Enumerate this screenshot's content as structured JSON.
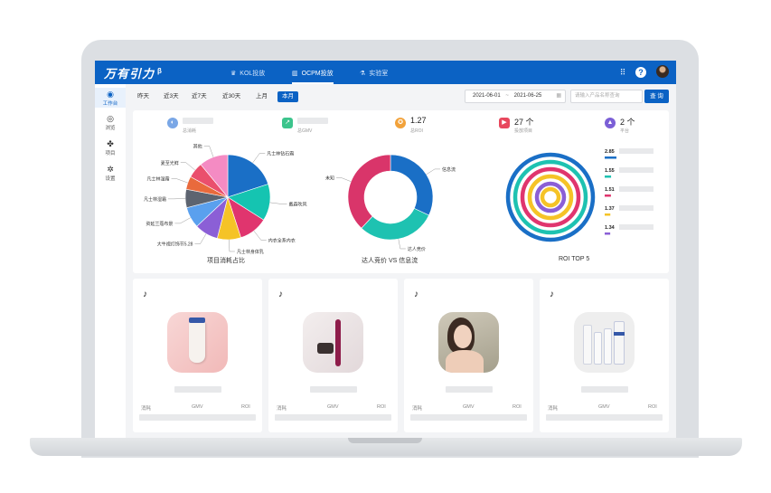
{
  "header": {
    "logo": "万有引力",
    "logo_sup": "β",
    "tabs": [
      {
        "label": "KOL投放",
        "active": false,
        "icon": "crown-icon"
      },
      {
        "label": "OCPM投放",
        "active": true,
        "icon": "bar-chart-icon"
      },
      {
        "label": "实验室",
        "active": false,
        "icon": "flask-icon"
      }
    ]
  },
  "sidebar": {
    "items": [
      {
        "label": "工作台",
        "icon": "dashboard-icon",
        "active": true
      },
      {
        "label": "浏览",
        "icon": "eye-icon",
        "active": false
      },
      {
        "label": "项目",
        "icon": "grid-icon",
        "active": false
      },
      {
        "label": "设置",
        "icon": "gear-icon",
        "active": false
      }
    ]
  },
  "filters": {
    "ranges": [
      "昨天",
      "近3天",
      "近7天",
      "近30天",
      "上月",
      "本月"
    ],
    "active_range": "本月",
    "date_start": "2021-06-01",
    "date_sep": "~",
    "date_end": "2021-06-25",
    "search_placeholder": "请输入产品名称查询",
    "query_label": "查 询"
  },
  "stats": [
    {
      "label": "总消耗",
      "value": "",
      "icon": "spend-icon",
      "color": "#7aa7e6"
    },
    {
      "label": "总GMV",
      "value": "",
      "icon": "gmv-icon",
      "color": "#3cc48c"
    },
    {
      "label": "总ROI",
      "value": "1.27",
      "icon": "medal-icon",
      "color": "#f2a23a"
    },
    {
      "label": "投放项目",
      "value": "27 个",
      "icon": "video-icon",
      "color": "#e8475d"
    },
    {
      "label": "平台",
      "value": "2 个",
      "icon": "platform-icon",
      "color": "#7b5fd6"
    }
  ],
  "chart_data": [
    {
      "type": "pie",
      "title": "项目消耗占比",
      "labels": [
        "凡士林钻石霜",
        "戴森吹风",
        "内衣全系内衣",
        "凡士林身体乳",
        "大牛视灯饰节5.28",
        "资延兰蔻布景",
        "凡士林湿霜",
        "凡士林湿霜",
        "夏至光鲜",
        "其他"
      ],
      "values": [
        20,
        14,
        11,
        9,
        9,
        8,
        7,
        5,
        6,
        11
      ],
      "colors": [
        "#1a6fc6",
        "#15c4b1",
        "#e0356e",
        "#f5c327",
        "#8b5fd6",
        "#5aa0ee",
        "#5d6470",
        "#e96a3c",
        "#ea4f6d",
        "#f48bc3"
      ]
    },
    {
      "type": "pie",
      "title": "达人竞价 VS 信息流",
      "labels": [
        "信息流",
        "达人竞价",
        "未知"
      ],
      "values": [
        32,
        30,
        38
      ],
      "colors": [
        "#1a6fc6",
        "#1ec2b1",
        "#d9356a"
      ]
    },
    {
      "type": "bar",
      "title": "ROI TOP 5",
      "values": [
        2.85,
        1.55,
        1.51,
        1.37,
        1.34
      ],
      "colors": [
        "#1a6fc6",
        "#1ec2b1",
        "#e0356e",
        "#f5c327",
        "#8b5fd6"
      ]
    }
  ],
  "products": [
    {
      "platform_icon": "tiktok-icon",
      "metrics": [
        "消耗",
        "GMV",
        "ROI"
      ],
      "image": "lotion-tube"
    },
    {
      "platform_icon": "tiktok-icon",
      "metrics": [
        "消耗",
        "GMV",
        "ROI"
      ],
      "image": "hair-styler"
    },
    {
      "platform_icon": "tiktok-icon",
      "metrics": [
        "消耗",
        "GMV",
        "ROI"
      ],
      "image": "model-portrait"
    },
    {
      "platform_icon": "tiktok-icon",
      "metrics": [
        "消耗",
        "GMV",
        "ROI"
      ],
      "image": "lotion-bottles"
    }
  ]
}
